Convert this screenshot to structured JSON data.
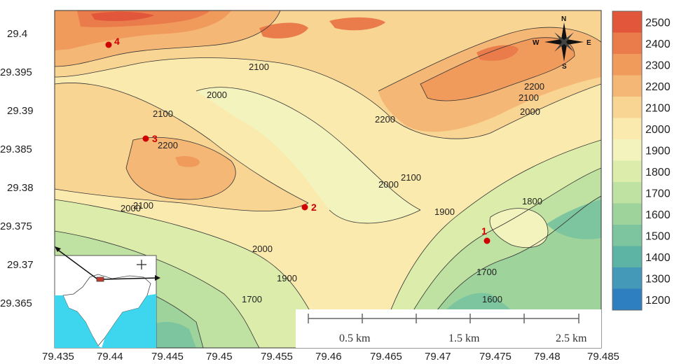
{
  "axes": {
    "x_ticks": [
      "79.435",
      "79.44",
      "79.445",
      "79.45",
      "79.455",
      "79.46",
      "79.465",
      "79.47",
      "79.475",
      "79.48",
      "79.485"
    ],
    "y_ticks": [
      "29.4",
      "29.395",
      "29.39",
      "29.385",
      "29.38",
      "29.375",
      "29.37",
      "29.365"
    ]
  },
  "colorbar": {
    "levels": [
      "2500",
      "2400",
      "2300",
      "2200",
      "2100",
      "2000",
      "1900",
      "1800",
      "1700",
      "1600",
      "1500",
      "1400",
      "1300",
      "1200"
    ],
    "colors": [
      "#e2563b",
      "#ea7b4b",
      "#f09a5c",
      "#f4b776",
      "#f9d594",
      "#fbeaad",
      "#f3f3bd",
      "#dcedab",
      "#bfe1a1",
      "#9fd39c",
      "#7dc59e",
      "#5db4a5",
      "#4498b8",
      "#2e7fc0"
    ]
  },
  "contour_labels": [
    "2100",
    "2000",
    "2200",
    "2100",
    "2000",
    "2100",
    "2200",
    "2200",
    "2100",
    "2000",
    "2100",
    "2000",
    "1900",
    "1800",
    "2000",
    "1900",
    "1700",
    "1700",
    "1600",
    "2000",
    "2100"
  ],
  "sites": [
    {
      "label": "1"
    },
    {
      "label": "2"
    },
    {
      "label": "3"
    },
    {
      "label": "4"
    }
  ],
  "compass": {
    "n": "N",
    "s": "S",
    "e": "E",
    "w": "W"
  },
  "scale_bar": {
    "labels": [
      "0.5 km",
      "1.5 km",
      "2.5 km"
    ]
  }
}
